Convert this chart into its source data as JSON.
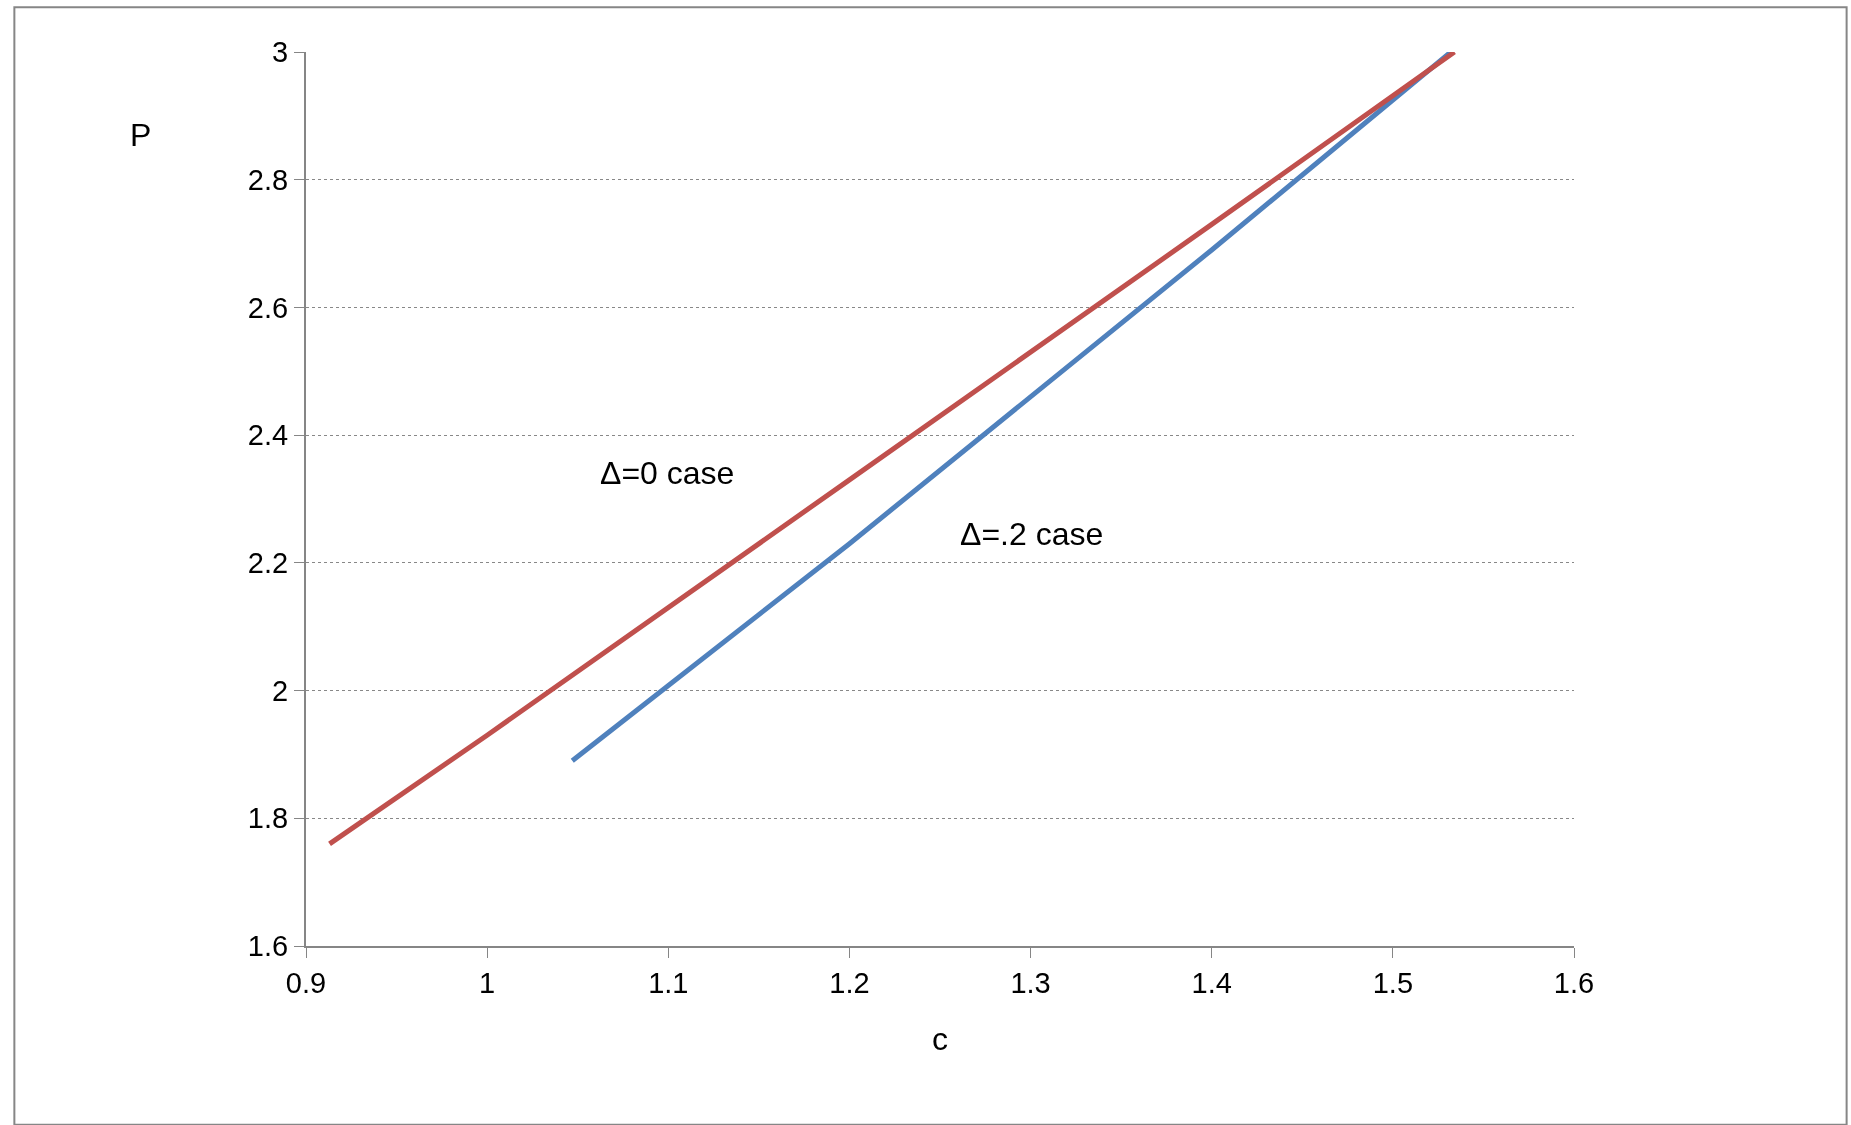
{
  "chart_data": {
    "type": "line",
    "xlabel": "c",
    "ylabel": "P",
    "series": [
      {
        "color": "#4f81bd",
        "x": [
          1.047,
          1.2,
          1.4,
          1.532
        ],
        "values": [
          1.89,
          2.23,
          2.69,
          3.0
        ]
      },
      {
        "color": "#c0504d",
        "x": [
          0.913,
          1.0,
          1.2,
          1.4,
          1.534
        ],
        "values": [
          1.76,
          1.93,
          2.33,
          2.73,
          3.0
        ]
      }
    ],
    "annotations": [
      "Δ=0 case",
      "Δ=.2 case"
    ],
    "xlim": [
      0.9,
      1.6
    ],
    "xticks": [
      0.9,
      1,
      1.1,
      1.2,
      1.3,
      1.4,
      1.5,
      1.6
    ],
    "ylim": [
      1.6,
      3
    ],
    "yticks": [
      1.6,
      1.8,
      2,
      2.2,
      2.4,
      2.6,
      2.8,
      3
    ],
    "grid": "y",
    "marker": "none",
    "line_style": "solid"
  }
}
